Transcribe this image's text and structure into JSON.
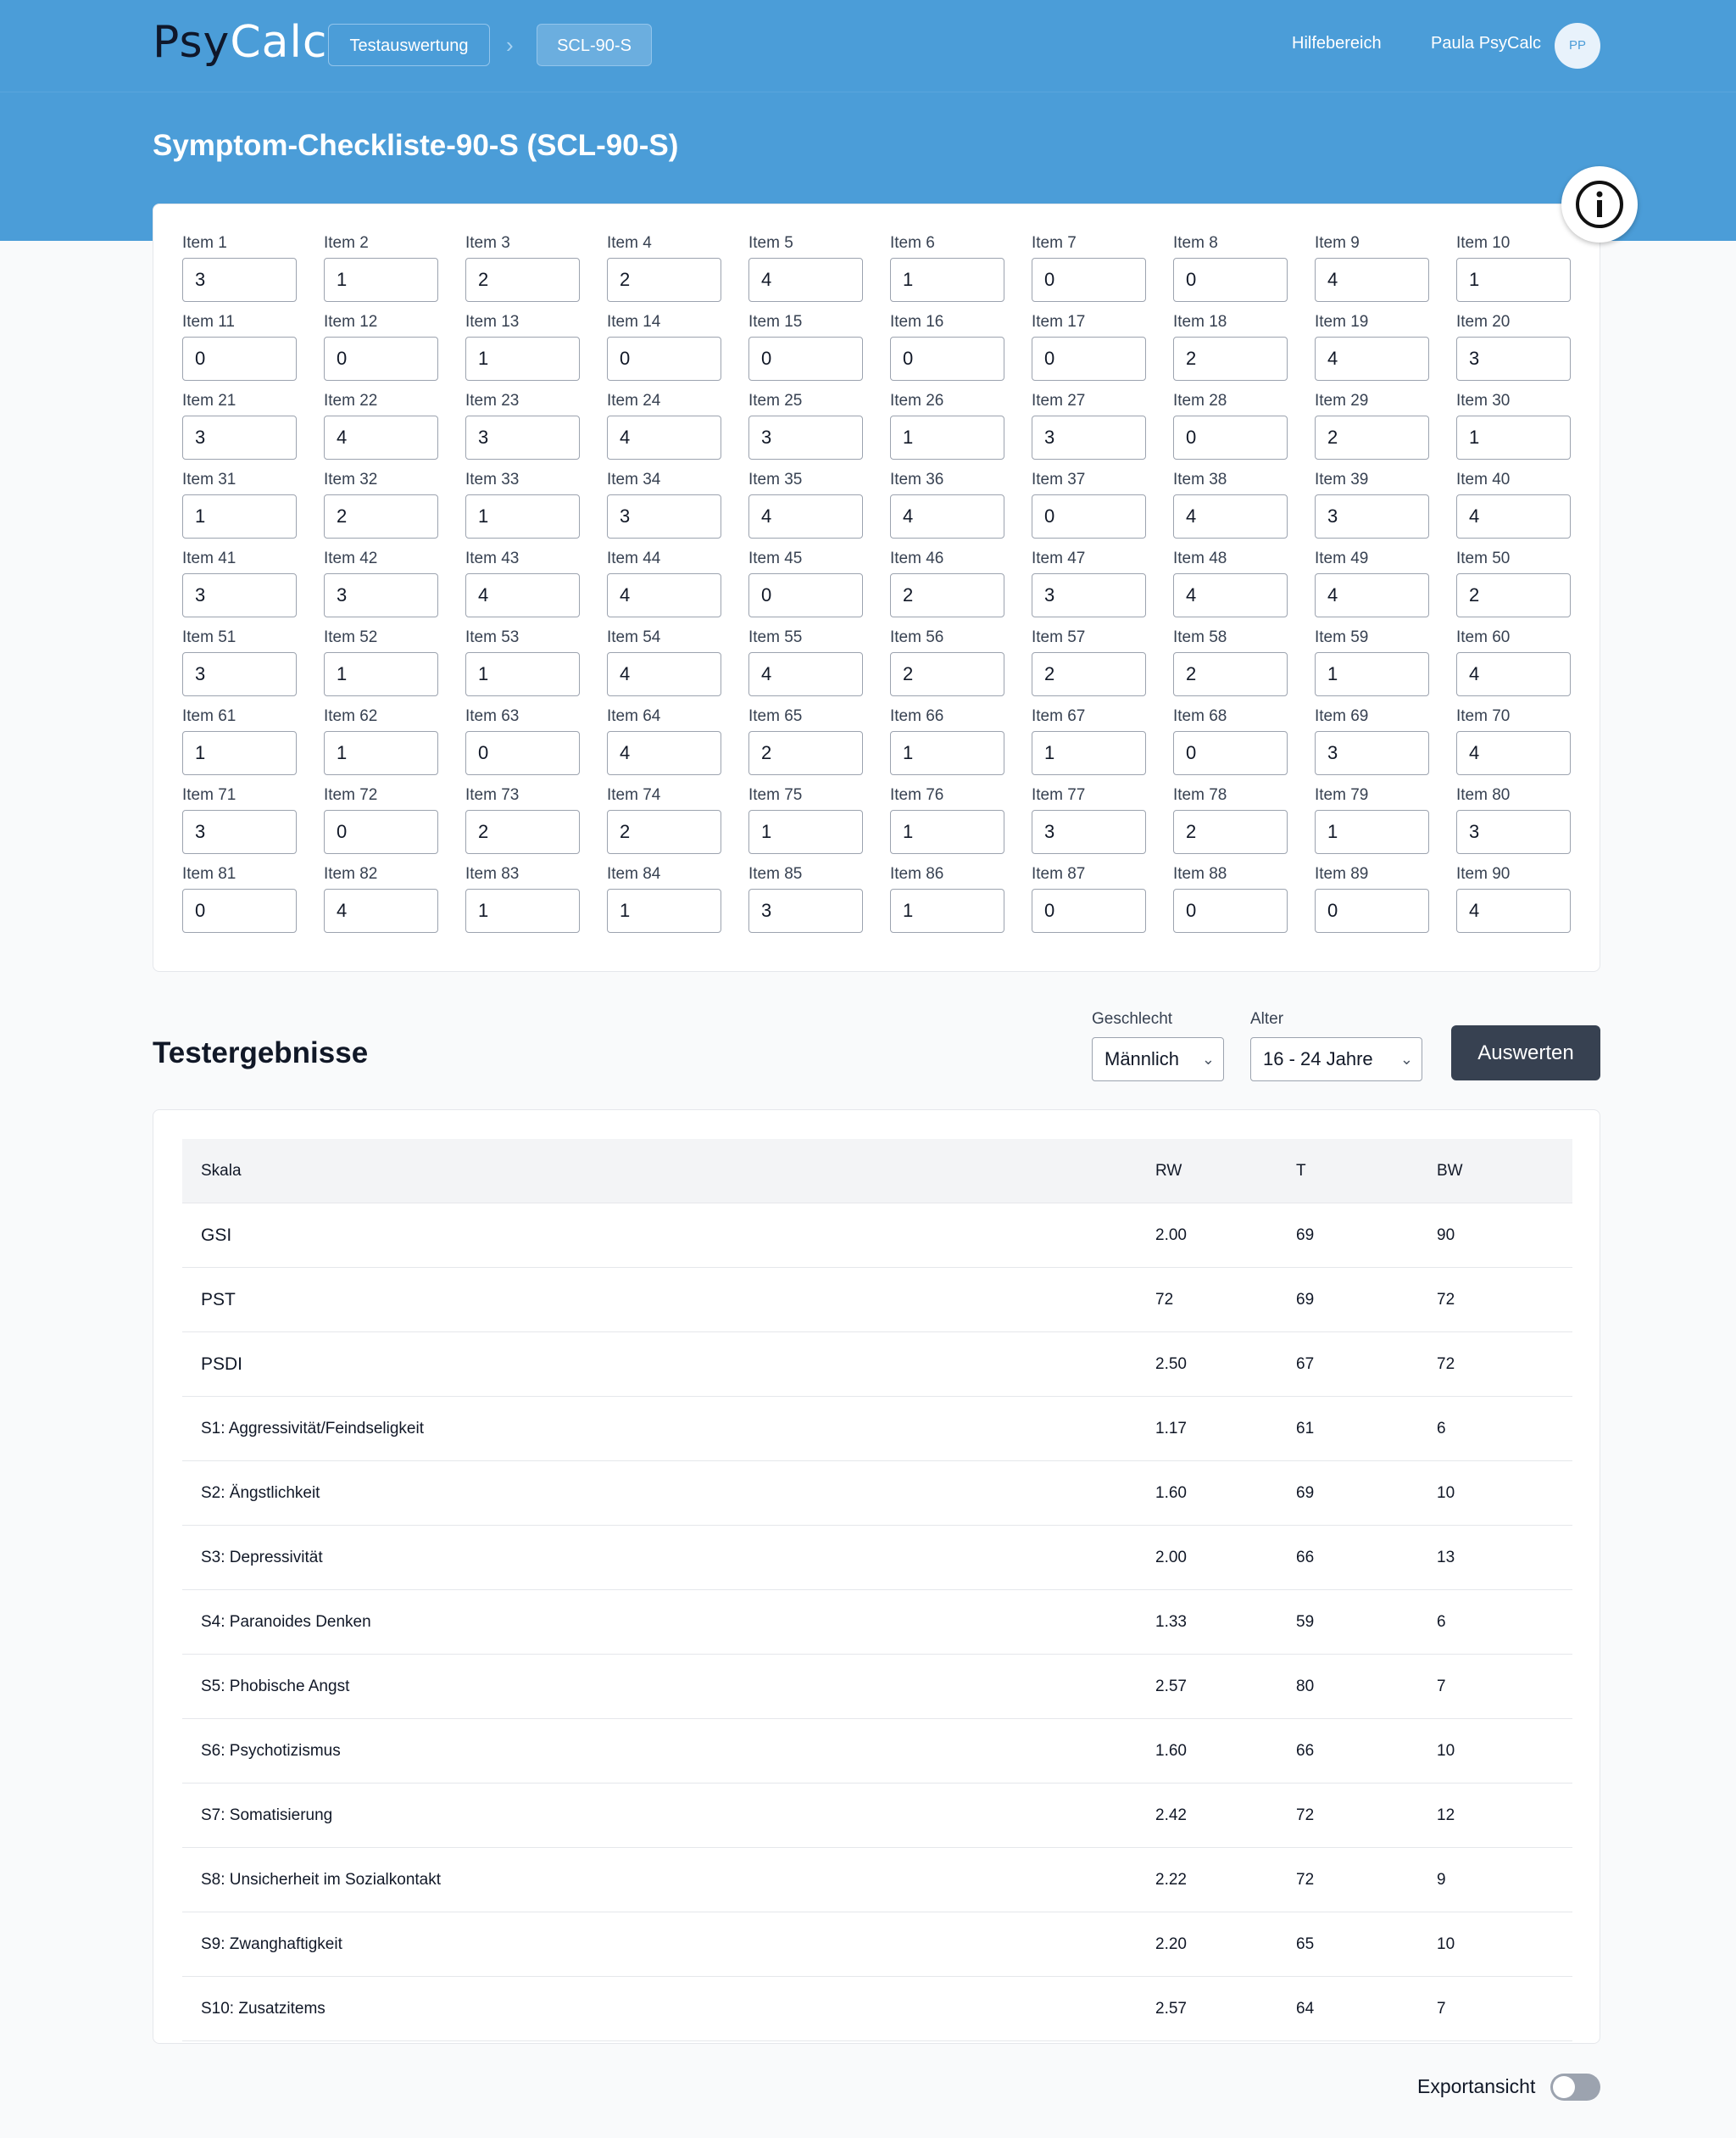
{
  "header": {
    "logo_psy": "Psy",
    "logo_calc": "Calc",
    "breadcrumb": [
      "Testauswertung",
      "SCL-90-S"
    ],
    "breadcrumb_separator": "›",
    "help_link": "Hilfebereich",
    "user_name": "Paula PsyCalc",
    "avatar_initials": "PP"
  },
  "page": {
    "title": "Symptom-Checkliste-90-S (SCL-90-S)"
  },
  "items": {
    "label_prefix": "Item",
    "values": [
      3,
      1,
      2,
      2,
      4,
      1,
      0,
      0,
      4,
      1,
      0,
      0,
      1,
      0,
      0,
      0,
      0,
      2,
      4,
      3,
      3,
      4,
      3,
      4,
      3,
      1,
      3,
      0,
      2,
      1,
      1,
      2,
      1,
      3,
      4,
      4,
      0,
      4,
      3,
      4,
      3,
      3,
      4,
      4,
      0,
      2,
      3,
      4,
      4,
      2,
      3,
      1,
      1,
      4,
      4,
      2,
      2,
      2,
      1,
      4,
      1,
      1,
      0,
      4,
      2,
      1,
      1,
      0,
      3,
      4,
      3,
      0,
      2,
      2,
      1,
      1,
      3,
      2,
      1,
      3,
      0,
      4,
      1,
      1,
      3,
      1,
      0,
      0,
      0,
      4
    ]
  },
  "results": {
    "title": "Testergebnisse",
    "gender_label": "Geschlecht",
    "gender_value": "Männlich",
    "age_label": "Alter",
    "age_value": "16 - 24 Jahre",
    "evaluate_button": "Auswerten",
    "columns": [
      "Skala",
      "RW",
      "T",
      "BW"
    ],
    "rows": [
      {
        "skala": "GSI",
        "rw": "2.00",
        "t": "69",
        "bw": "90",
        "main": true
      },
      {
        "skala": "PST",
        "rw": "72",
        "t": "69",
        "bw": "72",
        "main": true
      },
      {
        "skala": "PSDI",
        "rw": "2.50",
        "t": "67",
        "bw": "72",
        "main": true
      },
      {
        "skala": "S1: Aggressivität/Feindseligkeit",
        "rw": "1.17",
        "t": "61",
        "bw": "6"
      },
      {
        "skala": "S2: Ängstlichkeit",
        "rw": "1.60",
        "t": "69",
        "bw": "10"
      },
      {
        "skala": "S3: Depressivität",
        "rw": "2.00",
        "t": "66",
        "bw": "13"
      },
      {
        "skala": "S4: Paranoides Denken",
        "rw": "1.33",
        "t": "59",
        "bw": "6"
      },
      {
        "skala": "S5: Phobische Angst",
        "rw": "2.57",
        "t": "80",
        "bw": "7"
      },
      {
        "skala": "S6: Psychotizismus",
        "rw": "1.60",
        "t": "66",
        "bw": "10"
      },
      {
        "skala": "S7: Somatisierung",
        "rw": "2.42",
        "t": "72",
        "bw": "12"
      },
      {
        "skala": "S8: Unsicherheit im Sozialkontakt",
        "rw": "2.22",
        "t": "72",
        "bw": "9"
      },
      {
        "skala": "S9: Zwanghaftigkeit",
        "rw": "2.20",
        "t": "65",
        "bw": "10"
      },
      {
        "skala": "S10: Zusatzitems",
        "rw": "2.57",
        "t": "64",
        "bw": "7"
      }
    ]
  },
  "footer": {
    "export_label": "Exportansicht",
    "export_toggle_on": false
  },
  "colors": {
    "brand_blue": "#4b9dd8",
    "button_dark": "#374151"
  }
}
